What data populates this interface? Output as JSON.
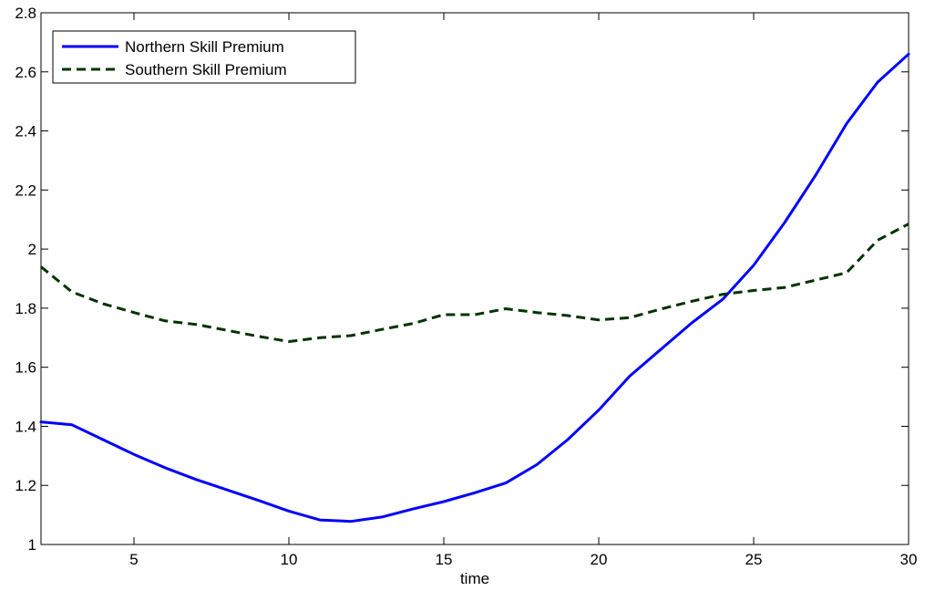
{
  "chart_data": {
    "type": "line",
    "title": "",
    "xlabel": "time",
    "ylabel": "",
    "xlim": [
      2,
      30
    ],
    "ylim": [
      1,
      2.8
    ],
    "xticks": [
      5,
      10,
      15,
      20,
      25,
      30
    ],
    "yticks": [
      1,
      1.2,
      1.4,
      1.6,
      1.8,
      2,
      2.2,
      2.4,
      2.6,
      2.8
    ],
    "xtick_labels": [
      "5",
      "10",
      "15",
      "20",
      "25",
      "30"
    ],
    "ytick_labels": [
      "1",
      "1.2",
      "1.4",
      "1.6",
      "1.8",
      "2",
      "2.2",
      "2.4",
      "2.6",
      "2.8"
    ],
    "grid": false,
    "legend_position": "top-left",
    "x": [
      2,
      3,
      4,
      5,
      6,
      7,
      8,
      9,
      10,
      11,
      12,
      13,
      14,
      15,
      16,
      17,
      18,
      19,
      20,
      21,
      22,
      23,
      24,
      25,
      26,
      27,
      28,
      29,
      30
    ],
    "series": [
      {
        "name": "Northern Skill Premium",
        "color": "#0000ff",
        "style": "solid",
        "values": [
          1.415,
          1.405,
          1.355,
          1.305,
          1.26,
          1.22,
          1.185,
          1.15,
          1.113,
          1.083,
          1.078,
          1.093,
          1.12,
          1.145,
          1.175,
          1.208,
          1.27,
          1.355,
          1.455,
          1.57,
          1.66,
          1.75,
          1.83,
          1.945,
          2.09,
          2.25,
          2.425,
          2.565,
          2.66
        ]
      },
      {
        "name": "Southern Skill Premium",
        "color": "#003300",
        "style": "dashed",
        "values": [
          1.94,
          1.855,
          1.815,
          1.785,
          1.757,
          1.745,
          1.725,
          1.705,
          1.687,
          1.7,
          1.707,
          1.728,
          1.748,
          1.778,
          1.778,
          1.798,
          1.785,
          1.775,
          1.76,
          1.768,
          1.797,
          1.823,
          1.847,
          1.86,
          1.87,
          1.895,
          1.92,
          2.03,
          2.085
        ]
      }
    ]
  }
}
